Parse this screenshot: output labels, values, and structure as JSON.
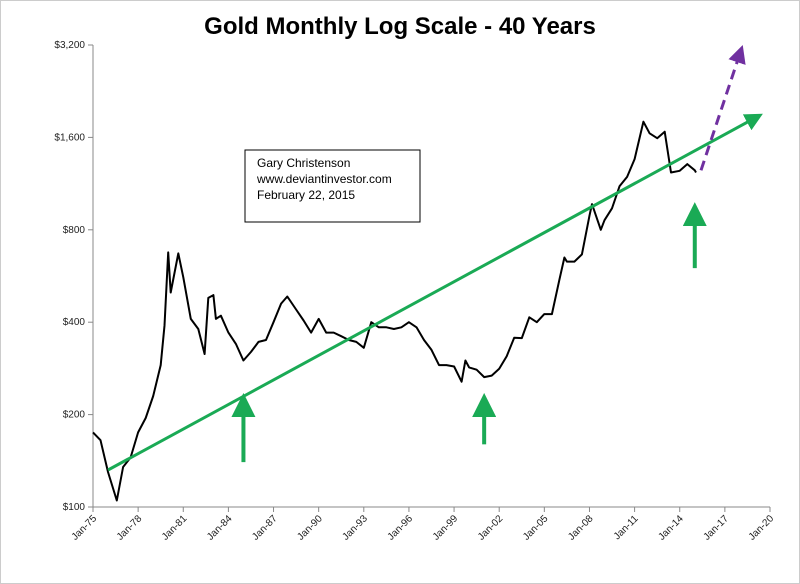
{
  "chart_data": {
    "type": "line",
    "title": "Gold Monthly Log Scale - 40 Years",
    "annotation": [
      "Gary Christenson",
      "www.deviantinvestor.com",
      "February 22, 2015"
    ],
    "log_scale": true,
    "grid": false,
    "legend": false,
    "xlim": [
      "Jan-75",
      "Jan-20"
    ],
    "xticks": [
      "Jan-75",
      "Jan-78",
      "Jan-81",
      "Jan-84",
      "Jan-87",
      "Jan-90",
      "Jan-93",
      "Jan-96",
      "Jan-99",
      "Jan-02",
      "Jan-05",
      "Jan-08",
      "Jan-11",
      "Jan-14",
      "Jan-17",
      "Jan-20"
    ],
    "ylim": [
      100,
      3200
    ],
    "yticks": [
      {
        "value": 100,
        "label": "$100"
      },
      {
        "value": 200,
        "label": "$200"
      },
      {
        "value": 400,
        "label": "$400"
      },
      {
        "value": 800,
        "label": "$800"
      },
      {
        "value": 1600,
        "label": "$1,600"
      },
      {
        "value": 3200,
        "label": "$3,200"
      }
    ],
    "series": [
      {
        "color": "#000000",
        "x": [
          "Jan-75",
          "Jul-75",
          "Jan-76",
          "Aug-76",
          "Jan-77",
          "Jul-77",
          "Jan-78",
          "Jul-78",
          "Jan-79",
          "Jul-79",
          "Oct-79",
          "Jan-80",
          "Mar-80",
          "Sep-80",
          "Jan-81",
          "Jul-81",
          "Jan-82",
          "Jun-82",
          "Sep-82",
          "Jan-83",
          "Mar-83",
          "Jul-83",
          "Jan-84",
          "Jul-84",
          "Jan-85",
          "Jul-85",
          "Jan-86",
          "Jul-86",
          "Jan-87",
          "Jul-87",
          "Dec-87",
          "Jul-88",
          "Jan-89",
          "Jul-89",
          "Jan-90",
          "Jul-90",
          "Jan-91",
          "Jul-91",
          "Jan-92",
          "Jul-92",
          "Jan-93",
          "Jul-93",
          "Jan-94",
          "Jul-94",
          "Jan-95",
          "Jul-95",
          "Jan-96",
          "Jul-96",
          "Jan-97",
          "Jul-97",
          "Jan-98",
          "Jul-98",
          "Jan-99",
          "Jul-99",
          "Oct-99",
          "Jan-00",
          "Jul-00",
          "Jan-01",
          "Jul-01",
          "Jan-02",
          "Jul-02",
          "Jan-03",
          "Jul-03",
          "Jan-04",
          "Jul-04",
          "Jan-05",
          "Jul-05",
          "Jan-06",
          "May-06",
          "Jul-06",
          "Jan-07",
          "Jul-07",
          "Jan-08",
          "Mar-08",
          "Oct-08",
          "Jan-09",
          "Jul-09",
          "Jan-10",
          "Jul-10",
          "Jan-11",
          "Aug-11",
          "Jan-12",
          "Jul-12",
          "Jan-13",
          "Jun-13",
          "Jan-14",
          "Jul-14",
          "Jan-15",
          "Feb-15"
        ],
        "values": [
          175,
          165,
          130,
          105,
          135,
          145,
          175,
          195,
          230,
          290,
          390,
          675,
          500,
          670,
          560,
          410,
          380,
          315,
          480,
          490,
          410,
          420,
          370,
          340,
          300,
          320,
          345,
          350,
          400,
          460,
          485,
          440,
          405,
          370,
          410,
          370,
          370,
          360,
          350,
          345,
          330,
          400,
          385,
          385,
          380,
          385,
          400,
          385,
          350,
          325,
          290,
          290,
          287,
          256,
          300,
          285,
          280,
          265,
          268,
          282,
          310,
          356,
          355,
          415,
          400,
          425,
          425,
          550,
          650,
          630,
          630,
          665,
          890,
          970,
          800,
          860,
          940,
          1110,
          1190,
          1360,
          1800,
          1650,
          1590,
          1670,
          1230,
          1245,
          1310,
          1250,
          1230
        ]
      }
    ],
    "trend_lines": [
      {
        "color": "#1aaa55",
        "dashed": false,
        "x": [
          "Jan-76",
          "Jan-19"
        ],
        "values": [
          132,
          1850
        ]
      },
      {
        "color": "#7030a0",
        "dashed": true,
        "x": [
          "Jun-15",
          "Jan-18"
        ],
        "values": [
          1250,
          3000
        ]
      }
    ],
    "arrows": [
      {
        "color": "#1aaa55",
        "x": "Jan-85",
        "from": 140,
        "to": 215
      },
      {
        "color": "#1aaa55",
        "x": "Jan-01",
        "from": 160,
        "to": 215
      },
      {
        "color": "#1aaa55",
        "x": "Jan-15",
        "from": 600,
        "to": 900
      }
    ]
  }
}
